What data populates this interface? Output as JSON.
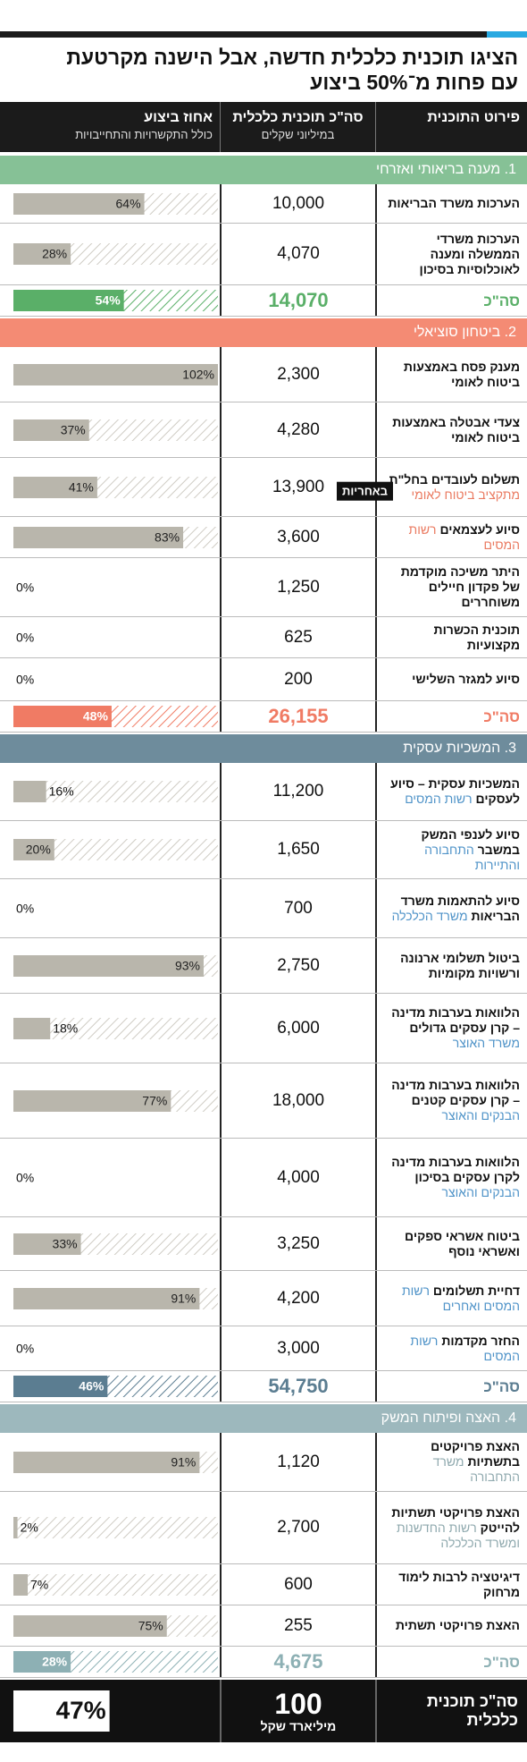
{
  "title_lines": [
    "הציגו תוכנית כלכלית חדשה, אבל הישנה מקרטעת",
    "עם פחות מ־50% ביצוע"
  ],
  "columns": [
    {
      "title": "פירוט התוכנית"
    },
    {
      "title": "סה\"כ תוכנית כלכלית",
      "subtitle": "במיליוני שקלים"
    },
    {
      "title": "אחוז ביצוע",
      "subtitle": "כולל התקשרויות והתחייבויות"
    }
  ],
  "note": "באחריות",
  "sections": [
    {
      "title": "1. מענה בריאותי ואזרחי",
      "color": "#86c196",
      "total_color": "#5aaf68",
      "body_color": "#5aaf68",
      "rows": [
        {
          "label": "הערכות משרד הבריאות",
          "amount": "10,000",
          "percent": 64,
          "percent_label": "64%"
        },
        {
          "label": "הערכות משרדי הממשלה ומענה לאוכלוסיות בסיכון",
          "amount": "4,070",
          "percent": 28,
          "percent_label": "28%"
        }
      ],
      "total": {
        "label": "סה\"כ",
        "amount": "14,070",
        "percent": 54,
        "percent_label": "54%"
      }
    },
    {
      "title": "2. ביטחון סוציאלי",
      "color": "#f48b74",
      "total_color": "#f07b64",
      "body_color": "#ea7a60",
      "rows": [
        {
          "label": "מענק פסח באמצעות ביטוח לאומי",
          "amount": "2,300",
          "percent": 102,
          "percent_label": "102%"
        },
        {
          "label": "צעדי אבטלה באמצעות ביטוח לאומי",
          "amount": "4,280",
          "percent": 37,
          "percent_label": "37%"
        },
        {
          "label": "תשלום לעובדים בחל\"ת",
          "body": "מתקציב ביטוח לאומי",
          "amount": "13,900",
          "percent": 41,
          "percent_label": "41%"
        },
        {
          "label": "סיוע לעצמאים",
          "body": "רשות המסים",
          "amount": "3,600",
          "percent": 83,
          "percent_label": "83%"
        },
        {
          "label": "היתר משיכה מוקדמת של פקדון חיילים משוחררים",
          "amount": "1,250",
          "percent": 0,
          "percent_label": "0%"
        },
        {
          "label": "תוכנית הכשרות מקצועיות",
          "amount": "625",
          "percent": 0,
          "percent_label": "0%"
        },
        {
          "label": "סיוע למגזר השלישי",
          "amount": "200",
          "percent": 0,
          "percent_label": "0%"
        }
      ],
      "total": {
        "label": "סה\"כ",
        "amount": "26,155",
        "percent": 48,
        "percent_label": "48%"
      }
    },
    {
      "title": "3. המשכיות עסקית",
      "color": "#6e8c9c",
      "total_color": "#5b7d91",
      "body_color": "#4f93c8",
      "rows": [
        {
          "label": "המשכיות עסקית – סיוע לעסקים",
          "body": "רשות המסים",
          "amount": "11,200",
          "percent": 16,
          "percent_label": "16%"
        },
        {
          "label": "סיוע לענפי המשק במשבר",
          "body": "התחבורה והתיירות",
          "amount": "1,650",
          "percent": 20,
          "percent_label": "20%"
        },
        {
          "label": "סיוע להתאמות משרד הבריאות",
          "body": "משרד הכלכלה",
          "amount": "700",
          "percent": 0,
          "percent_label": "0%"
        },
        {
          "label": "ביטול תשלומי ארנונה ורשויות מקומיות",
          "amount": "2,750",
          "percent": 93,
          "percent_label": "93%"
        },
        {
          "label": "הלוואות בערבות מדינה – קרן עסקים גדולים",
          "body": "משרד האוצר",
          "amount": "6,000",
          "percent": 18,
          "percent_label": "18%"
        },
        {
          "label": "הלוואות בערבות מדינה – קרן עסקים קטנים",
          "body": "הבנקים והאוצר",
          "amount": "18,000",
          "percent": 77,
          "percent_label": "77%"
        },
        {
          "label": "הלוואות בערבות מדינה לקרן עסקים בסיכון",
          "body": "הבנקים והאוצר",
          "amount": "4,000",
          "percent": 0,
          "percent_label": "0%"
        },
        {
          "label": "ביטוח אשראי ספקים ואשראי נוסף",
          "amount": "3,250",
          "percent": 33,
          "percent_label": "33%"
        },
        {
          "label": "דחיית תשלומים",
          "body": "רשות המסים ואחרים",
          "amount": "4,200",
          "percent": 91,
          "percent_label": "91%"
        },
        {
          "label": "החזר מקדמות",
          "body": "רשות המסים",
          "amount": "3,000",
          "percent": 0,
          "percent_label": "0%"
        }
      ],
      "total": {
        "label": "סה\"כ",
        "amount": "54,750",
        "percent": 46,
        "percent_label": "46%"
      }
    },
    {
      "title": "4. האצה ופיתוח המשק",
      "color": "#9db8bd",
      "total_color": "#8db0b4",
      "body_color": "#8fa9ae",
      "rows": [
        {
          "label": "האצת פרויקטים בתשתיות",
          "body": "משרד התחבורה",
          "amount": "1,120",
          "percent": 91,
          "percent_label": "91%"
        },
        {
          "label": "האצת פרויקטי תשתיות להייטק",
          "body": "רשות החדשנות ומשרד הכלכלה",
          "amount": "2,700",
          "percent": 2,
          "percent_label": "2%"
        },
        {
          "label": "דיגיטציה לרבות לימוד מרחוק",
          "amount": "600",
          "percent": 7,
          "percent_label": "7%"
        },
        {
          "label": "האצת פרויקטי תשתית",
          "amount": "255",
          "percent": 75,
          "percent_label": "75%"
        }
      ],
      "total": {
        "label": "סה\"כ",
        "amount": "4,675",
        "percent": 28,
        "percent_label": "28%"
      }
    }
  ],
  "grand_total": {
    "label": "סה\"כ תוכנית כלכלית",
    "amount": "100",
    "unit": "מיליארד שקל",
    "percent": 47,
    "percent_label": "47%"
  }
}
